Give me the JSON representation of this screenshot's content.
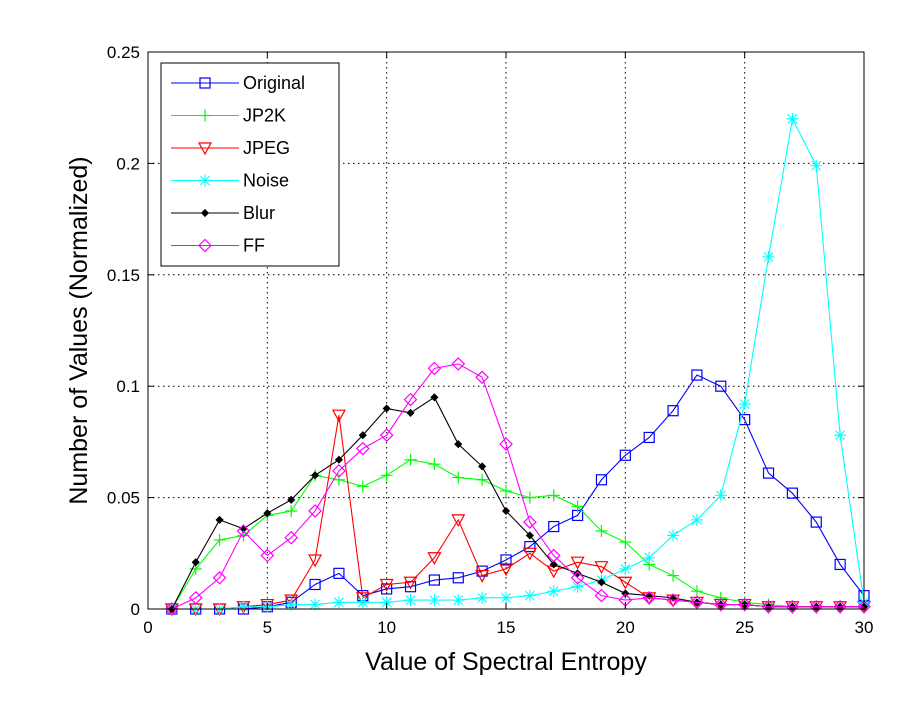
{
  "chart_data": {
    "type": "line",
    "title": "",
    "xlabel": "Value of Spectral Entropy",
    "ylabel": "Number of Values (Normalized)",
    "xlim": [
      0,
      30
    ],
    "ylim": [
      0,
      0.25
    ],
    "xticks": [
      "0",
      "5",
      "10",
      "15",
      "20",
      "25",
      "30"
    ],
    "yticks": [
      "0",
      "0.05",
      "0.1",
      "0.15",
      "0.2",
      "0.25"
    ],
    "grid": true,
    "legend_position": "top-left",
    "x": [
      1,
      2,
      3,
      4,
      5,
      6,
      7,
      8,
      9,
      10,
      11,
      12,
      13,
      14,
      15,
      16,
      17,
      18,
      19,
      20,
      21,
      22,
      23,
      24,
      25,
      26,
      27,
      28,
      29,
      30
    ],
    "series": [
      {
        "name": "Original",
        "color": "#0000ff",
        "marker": "square",
        "values": [
          0,
          0,
          0,
          0,
          0.001,
          0.003,
          0.011,
          0.016,
          0.006,
          0.009,
          0.01,
          0.013,
          0.014,
          0.017,
          0.022,
          0.028,
          0.037,
          0.042,
          0.058,
          0.069,
          0.077,
          0.089,
          0.105,
          0.1,
          0.085,
          0.061,
          0.052,
          0.039,
          0.02,
          0.006
        ]
      },
      {
        "name": "JP2K",
        "color": "#00ff00",
        "marker": "plus",
        "values": [
          0,
          0.018,
          0.031,
          0.033,
          0.042,
          0.044,
          0.06,
          0.058,
          0.055,
          0.06,
          0.067,
          0.065,
          0.059,
          0.058,
          0.053,
          0.05,
          0.051,
          0.046,
          0.035,
          0.03,
          0.02,
          0.015,
          0.008,
          0.005,
          0.003,
          0.002,
          0.001,
          0.001,
          0.001,
          0.001
        ]
      },
      {
        "name": "JPEG",
        "color": "#ff0000",
        "marker": "triangle-down",
        "values": [
          0,
          0,
          0,
          0.001,
          0.002,
          0.004,
          0.022,
          0.087,
          0.005,
          0.011,
          0.012,
          0.023,
          0.04,
          0.015,
          0.018,
          0.025,
          0.017,
          0.021,
          0.019,
          0.012,
          0.005,
          0.004,
          0.003,
          0.002,
          0.002,
          0.001,
          0.001,
          0.001,
          0.001,
          0.001
        ]
      },
      {
        "name": "Noise",
        "color": "#00ffff",
        "marker": "star",
        "values": [
          0,
          0,
          0,
          0.001,
          0.001,
          0.002,
          0.002,
          0.003,
          0.003,
          0.003,
          0.004,
          0.004,
          0.004,
          0.005,
          0.005,
          0.006,
          0.008,
          0.01,
          0.013,
          0.018,
          0.023,
          0.033,
          0.04,
          0.051,
          0.092,
          0.158,
          0.22,
          0.199,
          0.078,
          0.003
        ]
      },
      {
        "name": "Blur",
        "color": "#000000",
        "marker": "dot",
        "values": [
          0,
          0.021,
          0.04,
          0.036,
          0.043,
          0.049,
          0.06,
          0.067,
          0.078,
          0.09,
          0.088,
          0.095,
          0.074,
          0.064,
          0.044,
          0.033,
          0.02,
          0.016,
          0.012,
          0.007,
          0.006,
          0.005,
          0.003,
          0.002,
          0.002,
          0.001,
          0.001,
          0.001,
          0.001,
          0.001
        ]
      },
      {
        "name": "FF",
        "color": "#ff00ff",
        "marker": "diamond",
        "values": [
          0,
          0.005,
          0.014,
          0.035,
          0.024,
          0.032,
          0.044,
          0.062,
          0.072,
          0.078,
          0.094,
          0.108,
          0.11,
          0.104,
          0.074,
          0.039,
          0.024,
          0.014,
          0.006,
          0.004,
          0.005,
          0.004,
          0.003,
          0.002,
          0.002,
          0.001,
          0.001,
          0.001,
          0.001,
          0.001
        ]
      }
    ]
  }
}
